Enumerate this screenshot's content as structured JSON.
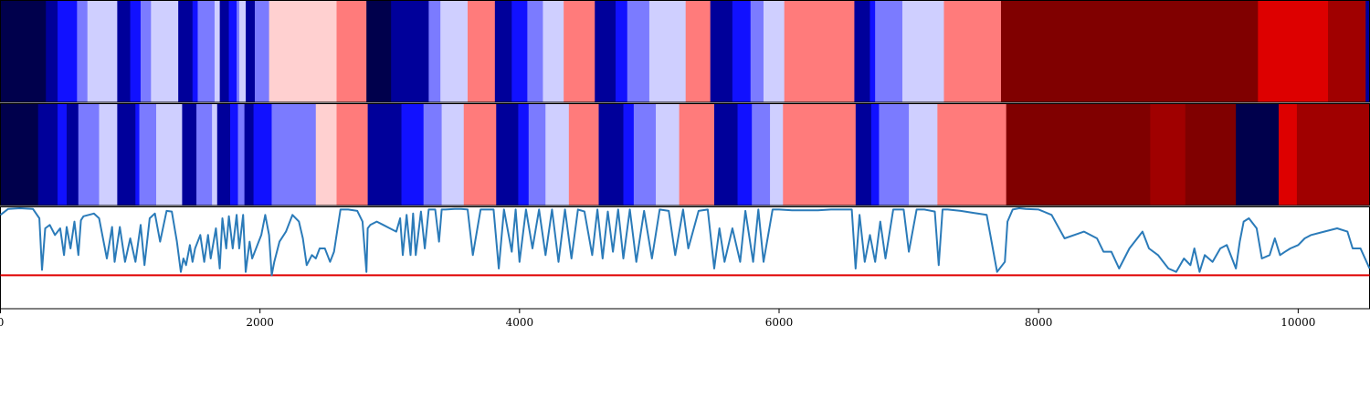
{
  "chart_data": {
    "type": "heatmap",
    "xlim": [
      0,
      10550
    ],
    "x_ticks": [
      0,
      2000,
      4000,
      6000,
      8000,
      10000
    ],
    "x_tick_labels": [
      "0",
      "2000",
      "4000",
      "6000",
      "8000",
      "10000"
    ],
    "colors": {
      "c0": "#00004c",
      "c1": "#00009a",
      "c2": "#1111ff",
      "c3": "#7b7bff",
      "c4": "#cfcfff",
      "c5": "#ffd0d0",
      "c6": "#ff7b7b",
      "c7": "#dd0000",
      "c8": "#a00000",
      "c9": "#800000",
      "line": "#2b7bb9",
      "threshold": "#e00000"
    },
    "strip_1": [
      [
        0,
        350,
        "c0"
      ],
      [
        350,
        440,
        "c1"
      ],
      [
        440,
        590,
        "c2"
      ],
      [
        590,
        670,
        "c3"
      ],
      [
        670,
        900,
        "c4"
      ],
      [
        900,
        1000,
        "c1"
      ],
      [
        1000,
        1080,
        "c2"
      ],
      [
        1080,
        1160,
        "c3"
      ],
      [
        1160,
        1370,
        "c4"
      ],
      [
        1370,
        1480,
        "c1"
      ],
      [
        1480,
        1520,
        "c2"
      ],
      [
        1520,
        1650,
        "c3"
      ],
      [
        1650,
        1690,
        "c4"
      ],
      [
        1690,
        1760,
        "c1"
      ],
      [
        1760,
        1820,
        "c2"
      ],
      [
        1820,
        1840,
        "c3"
      ],
      [
        1840,
        1890,
        "c4"
      ],
      [
        1890,
        1960,
        "c1"
      ],
      [
        1960,
        2070,
        "c3"
      ],
      [
        2070,
        2590,
        "c5"
      ],
      [
        2590,
        2820,
        "c6"
      ],
      [
        2820,
        3010,
        "c0"
      ],
      [
        3010,
        3300,
        "c1"
      ],
      [
        3300,
        3390,
        "c3"
      ],
      [
        3390,
        3600,
        "c4"
      ],
      [
        3600,
        3810,
        "c6"
      ],
      [
        3810,
        3940,
        "c1"
      ],
      [
        3940,
        4060,
        "c2"
      ],
      [
        4060,
        4180,
        "c3"
      ],
      [
        4180,
        4340,
        "c4"
      ],
      [
        4340,
        4580,
        "c6"
      ],
      [
        4580,
        4740,
        "c1"
      ],
      [
        4740,
        4830,
        "c2"
      ],
      [
        4830,
        5000,
        "c3"
      ],
      [
        5000,
        5280,
        "c4"
      ],
      [
        5280,
        5470,
        "c6"
      ],
      [
        5470,
        5640,
        "c1"
      ],
      [
        5640,
        5780,
        "c2"
      ],
      [
        5780,
        5880,
        "c3"
      ],
      [
        5880,
        6040,
        "c4"
      ],
      [
        6040,
        6580,
        "c6"
      ],
      [
        6580,
        6700,
        "c1"
      ],
      [
        6700,
        6740,
        "c2"
      ],
      [
        6740,
        6950,
        "c3"
      ],
      [
        6950,
        7270,
        "c4"
      ],
      [
        7270,
        7710,
        "c6"
      ],
      [
        7710,
        9690,
        "c9"
      ],
      [
        9690,
        10230,
        "c7"
      ],
      [
        10230,
        10520,
        "c8"
      ],
      [
        10520,
        10550,
        "c1"
      ]
    ],
    "strip_2": [
      [
        0,
        290,
        "c0"
      ],
      [
        290,
        440,
        "c1"
      ],
      [
        440,
        510,
        "c2"
      ],
      [
        510,
        600,
        "c1"
      ],
      [
        600,
        760,
        "c3"
      ],
      [
        760,
        900,
        "c4"
      ],
      [
        900,
        1040,
        "c1"
      ],
      [
        1040,
        1070,
        "c2"
      ],
      [
        1070,
        1200,
        "c3"
      ],
      [
        1200,
        1400,
        "c4"
      ],
      [
        1400,
        1510,
        "c1"
      ],
      [
        1510,
        1630,
        "c3"
      ],
      [
        1630,
        1670,
        "c4"
      ],
      [
        1670,
        1770,
        "c1"
      ],
      [
        1770,
        1830,
        "c2"
      ],
      [
        1830,
        1880,
        "c3"
      ],
      [
        1880,
        1950,
        "c1"
      ],
      [
        1950,
        2090,
        "c2"
      ],
      [
        2090,
        2430,
        "c3"
      ],
      [
        2430,
        2590,
        "c5"
      ],
      [
        2590,
        2830,
        "c6"
      ],
      [
        2830,
        3090,
        "c1"
      ],
      [
        3090,
        3260,
        "c2"
      ],
      [
        3260,
        3400,
        "c3"
      ],
      [
        3400,
        3570,
        "c4"
      ],
      [
        3570,
        3820,
        "c6"
      ],
      [
        3820,
        3990,
        "c1"
      ],
      [
        3990,
        4070,
        "c2"
      ],
      [
        4070,
        4200,
        "c3"
      ],
      [
        4200,
        4380,
        "c4"
      ],
      [
        4380,
        4610,
        "c6"
      ],
      [
        4610,
        4800,
        "c1"
      ],
      [
        4800,
        4880,
        "c2"
      ],
      [
        4880,
        5050,
        "c3"
      ],
      [
        5050,
        5230,
        "c4"
      ],
      [
        5230,
        5500,
        "c6"
      ],
      [
        5500,
        5680,
        "c1"
      ],
      [
        5680,
        5790,
        "c2"
      ],
      [
        5790,
        5930,
        "c3"
      ],
      [
        5930,
        6030,
        "c4"
      ],
      [
        6030,
        6590,
        "c6"
      ],
      [
        6590,
        6710,
        "c1"
      ],
      [
        6710,
        6770,
        "c2"
      ],
      [
        6770,
        7000,
        "c3"
      ],
      [
        7000,
        7220,
        "c4"
      ],
      [
        7220,
        7750,
        "c6"
      ],
      [
        7750,
        8860,
        "c9"
      ],
      [
        8860,
        9130,
        "c8"
      ],
      [
        9130,
        9520,
        "c9"
      ],
      [
        9520,
        9850,
        "c0"
      ],
      [
        9850,
        9990,
        "c7"
      ],
      [
        9990,
        10550,
        "c8"
      ]
    ],
    "series": [
      {
        "x": [
          0,
          60,
          150,
          250,
          300,
          320,
          345,
          380,
          420,
          460,
          490,
          510,
          540,
          570,
          600,
          620,
          640,
          680,
          720,
          760,
          820,
          860,
          880,
          920,
          960,
          1000,
          1040,
          1080,
          1110,
          1150,
          1190,
          1230,
          1280,
          1320,
          1360,
          1390,
          1410,
          1430,
          1460,
          1480,
          1500,
          1540,
          1570,
          1600,
          1620,
          1660,
          1690,
          1710,
          1740,
          1760,
          1790,
          1820,
          1840,
          1870,
          1890,
          1920,
          1940,
          1980,
          2010,
          2040,
          2070,
          2090,
          2110,
          2150,
          2200,
          2250,
          2300,
          2330,
          2360,
          2400,
          2430,
          2460,
          2500,
          2540,
          2570,
          2620,
          2680,
          2750,
          2790,
          2820,
          2830,
          2850,
          2900,
          2950,
          3000,
          3050,
          3080,
          3100,
          3130,
          3160,
          3180,
          3200,
          3240,
          3270,
          3300,
          3350,
          3380,
          3400,
          3430,
          3500,
          3550,
          3600,
          3640,
          3700,
          3750,
          3800,
          3840,
          3880,
          3940,
          3970,
          4000,
          4050,
          4100,
          4150,
          4200,
          4250,
          4300,
          4350,
          4400,
          4450,
          4500,
          4560,
          4600,
          4640,
          4680,
          4720,
          4760,
          4800,
          4850,
          4900,
          4960,
          5020,
          5080,
          5150,
          5200,
          5260,
          5300,
          5380,
          5450,
          5500,
          5540,
          5580,
          5640,
          5700,
          5740,
          5800,
          5840,
          5880,
          5950,
          6000,
          6100,
          6200,
          6300,
          6400,
          6500,
          6560,
          6590,
          6620,
          6660,
          6700,
          6740,
          6780,
          6820,
          6880,
          6960,
          7000,
          7060,
          7120,
          7200,
          7230,
          7260,
          7300,
          7400,
          7500,
          7600,
          7680,
          7740,
          7760,
          7800,
          7850,
          7900,
          8000,
          8100,
          8200,
          8350,
          8450,
          8500,
          8560,
          8620,
          8700,
          8800,
          8850,
          8920,
          9000,
          9060,
          9120,
          9170,
          9200,
          9240,
          9280,
          9340,
          9400,
          9450,
          9520,
          9550,
          9580,
          9620,
          9680,
          9720,
          9780,
          9820,
          9860,
          9900,
          9940,
          10000,
          10050,
          10100,
          10200,
          10300,
          10380,
          10420,
          10480,
          10550
        ],
        "y": [
          0.9,
          0.99,
          1.0,
          0.99,
          0.85,
          0.08,
          0.7,
          0.75,
          0.6,
          0.7,
          0.3,
          0.72,
          0.4,
          0.8,
          0.3,
          0.82,
          0.88,
          0.9,
          0.92,
          0.85,
          0.25,
          0.72,
          0.2,
          0.72,
          0.2,
          0.55,
          0.2,
          0.75,
          0.15,
          0.85,
          0.92,
          0.5,
          0.96,
          0.95,
          0.5,
          0.05,
          0.25,
          0.15,
          0.45,
          0.2,
          0.4,
          0.6,
          0.2,
          0.6,
          0.25,
          0.7,
          0.1,
          0.85,
          0.4,
          0.88,
          0.4,
          0.9,
          0.4,
          0.9,
          0.05,
          0.5,
          0.25,
          0.45,
          0.6,
          0.9,
          0.6,
          0.0,
          0.2,
          0.5,
          0.65,
          0.9,
          0.8,
          0.55,
          0.15,
          0.3,
          0.25,
          0.4,
          0.4,
          0.2,
          0.35,
          0.98,
          0.98,
          0.96,
          0.8,
          0.05,
          0.7,
          0.75,
          0.8,
          0.75,
          0.7,
          0.65,
          0.85,
          0.3,
          0.9,
          0.3,
          0.92,
          0.3,
          0.95,
          0.4,
          0.98,
          0.98,
          0.5,
          0.98,
          0.98,
          0.99,
          0.99,
          0.98,
          0.3,
          0.98,
          0.98,
          0.98,
          0.1,
          0.98,
          0.35,
          0.98,
          0.2,
          0.98,
          0.4,
          0.98,
          0.3,
          0.98,
          0.2,
          0.98,
          0.25,
          0.98,
          0.95,
          0.3,
          0.98,
          0.25,
          0.95,
          0.35,
          0.98,
          0.25,
          0.98,
          0.2,
          0.96,
          0.25,
          0.98,
          0.96,
          0.3,
          0.98,
          0.4,
          0.96,
          0.98,
          0.1,
          0.7,
          0.2,
          0.7,
          0.2,
          0.96,
          0.2,
          0.98,
          0.2,
          0.98,
          0.98,
          0.97,
          0.97,
          0.97,
          0.98,
          0.98,
          0.98,
          0.1,
          0.9,
          0.2,
          0.6,
          0.2,
          0.8,
          0.25,
          0.98,
          0.98,
          0.35,
          0.98,
          0.98,
          0.95,
          0.15,
          0.98,
          0.98,
          0.96,
          0.93,
          0.9,
          0.05,
          0.2,
          0.8,
          0.98,
          1.0,
          0.99,
          0.98,
          0.9,
          0.55,
          0.65,
          0.55,
          0.35,
          0.35,
          0.1,
          0.4,
          0.65,
          0.4,
          0.3,
          0.1,
          0.05,
          0.25,
          0.15,
          0.4,
          0.05,
          0.3,
          0.2,
          0.4,
          0.45,
          0.1,
          0.5,
          0.8,
          0.85,
          0.7,
          0.25,
          0.3,
          0.55,
          0.3,
          0.35,
          0.4,
          0.45,
          0.55,
          0.6,
          0.65,
          0.7,
          0.65,
          0.4,
          0.4,
          0.1
        ]
      }
    ],
    "line_ylim": [
      -0.5,
      1.02
    ],
    "threshold_y": 0.0
  }
}
